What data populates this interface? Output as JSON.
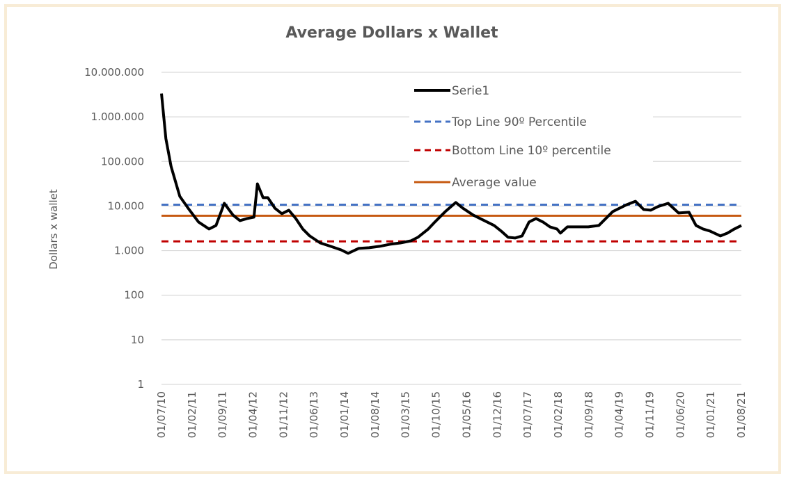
{
  "chart_data": {
    "type": "line",
    "title": "Average Dollars x Wallet",
    "xlabel": "",
    "ylabel": "Dollars x wallet",
    "yscale": "log",
    "ylim": [
      1,
      10000000
    ],
    "yticks": [
      1,
      10,
      100,
      1000,
      10000,
      100000,
      1000000,
      10000000
    ],
    "ytick_labels": [
      "1",
      "10",
      "100",
      "1.000",
      "10.000",
      "100.000",
      "1.000.000",
      "10.000.000"
    ],
    "x_unit": "months since 01/07/10",
    "xlim": [
      0,
      133
    ],
    "xtick_labels": [
      "01/07/10",
      "01/02/11",
      "01/09/11",
      "01/04/12",
      "01/11/12",
      "01/06/13",
      "01/01/14",
      "01/08/14",
      "01/03/15",
      "01/10/15",
      "01/05/16",
      "01/12/16",
      "01/07/17",
      "01/02/18",
      "01/09/18",
      "01/04/19",
      "01/11/19",
      "01/06/20",
      "01/01/21",
      "01/08/21"
    ],
    "grid": true,
    "legend_position": "top-right",
    "series": [
      {
        "name": "Serie1",
        "color": "#000000",
        "style": "solid",
        "x": [
          0,
          1,
          2.2,
          4.2,
          6.1,
          8.5,
          10.9,
          12.5,
          14.4,
          16.4,
          18,
          19.6,
          21.2,
          22,
          23.3,
          24.4,
          26,
          27.6,
          29.2,
          30.8,
          32.4,
          34,
          36.4,
          38.8,
          41.2,
          42.8,
          45.2,
          47.6,
          50,
          52.4,
          54.8,
          57.2,
          58.8,
          61.2,
          62.7,
          65.1,
          67.5,
          69.1,
          71.5,
          73.1,
          74.7,
          76.3,
          77.9,
          79.5,
          81.1,
          82.7,
          84.3,
          85.9,
          87.5,
          89.1,
          90.7,
          91.5,
          93.1,
          95.5,
          97.9,
          100.3,
          101.9,
          103.5,
          105.1,
          106.7,
          108.7,
          110.6,
          112.2,
          113.8,
          116.2,
          118.6,
          121,
          122.6,
          124.2,
          125.8,
          128.2,
          129.8,
          131.4,
          133
        ],
        "values": [
          3330000,
          324000,
          77000,
          16500,
          8980,
          4380,
          3060,
          3660,
          11500,
          6280,
          4710,
          5250,
          5630,
          31500,
          15400,
          15400,
          8980,
          6740,
          8070,
          5250,
          3060,
          2140,
          1490,
          1250,
          1040,
          870,
          1120,
          1160,
          1250,
          1390,
          1490,
          1660,
          1990,
          3060,
          4380,
          7500,
          12000,
          8980,
          6280,
          5250,
          4380,
          3660,
          2750,
          1990,
          1920,
          2140,
          4380,
          5250,
          4380,
          3410,
          3060,
          2470,
          3410,
          3410,
          3410,
          3660,
          5250,
          7500,
          8980,
          10700,
          12800,
          8360,
          8070,
          9640,
          11500,
          6990,
          7240,
          3660,
          3060,
          2750,
          2140,
          2470,
          3060,
          3660
        ]
      },
      {
        "name": "Top Line 90º Percentile",
        "color": "#4472C4",
        "style": "dashed",
        "value": 10700
      },
      {
        "name": "Bottom Line 10º percentile",
        "color": "#C00000",
        "style": "dashed",
        "value": 1610
      },
      {
        "name": "Average value",
        "color": "#C65911",
        "style": "solid",
        "value": 6050
      }
    ]
  }
}
